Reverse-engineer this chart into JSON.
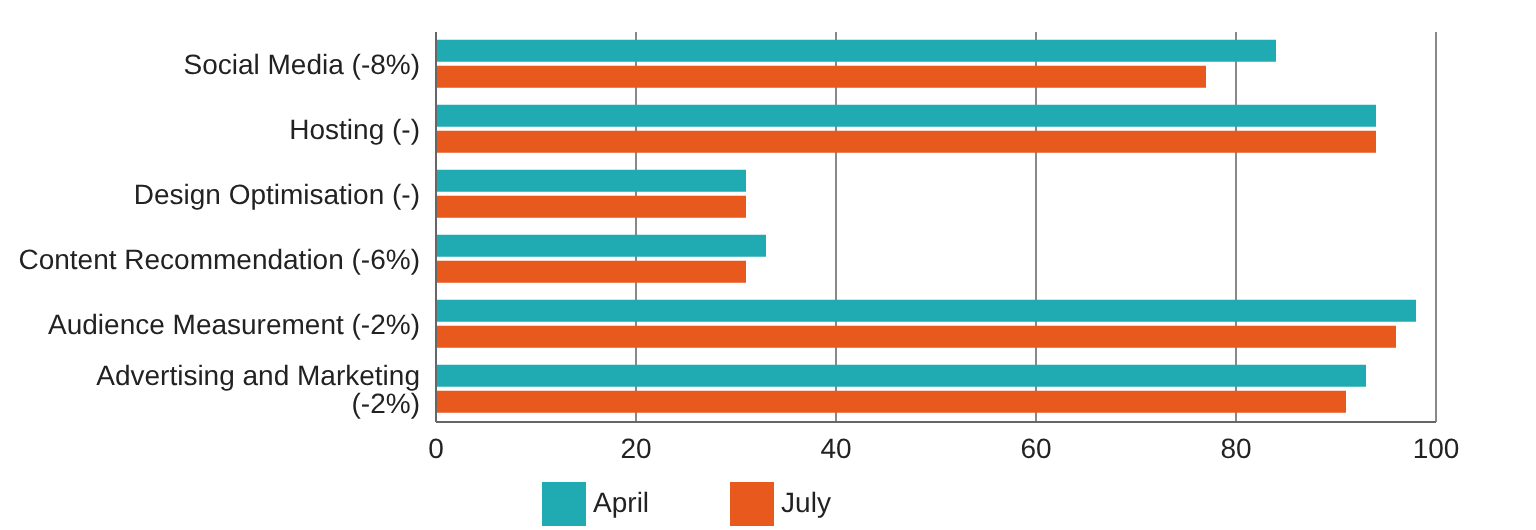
{
  "chart_data": {
    "type": "bar",
    "orientation": "horizontal",
    "categories": [
      "Social Media (-8%)",
      "Hosting (-)",
      "Design Optimisation (-)",
      "Content Recommendation (-6%)",
      "Audience Measurement (-2%)",
      "Advertising and Marketing (-2%)"
    ],
    "series": [
      {
        "name": "April",
        "color": "#20abb3",
        "values": [
          84,
          94,
          31,
          33,
          98,
          93
        ]
      },
      {
        "name": "July",
        "color": "#e8591e",
        "values": [
          77,
          94,
          31,
          31,
          96,
          91
        ]
      }
    ],
    "xlim": [
      0,
      100
    ],
    "xticks": [
      0,
      20,
      40,
      60,
      80,
      100
    ],
    "grid": "x",
    "legend": "bottom"
  }
}
